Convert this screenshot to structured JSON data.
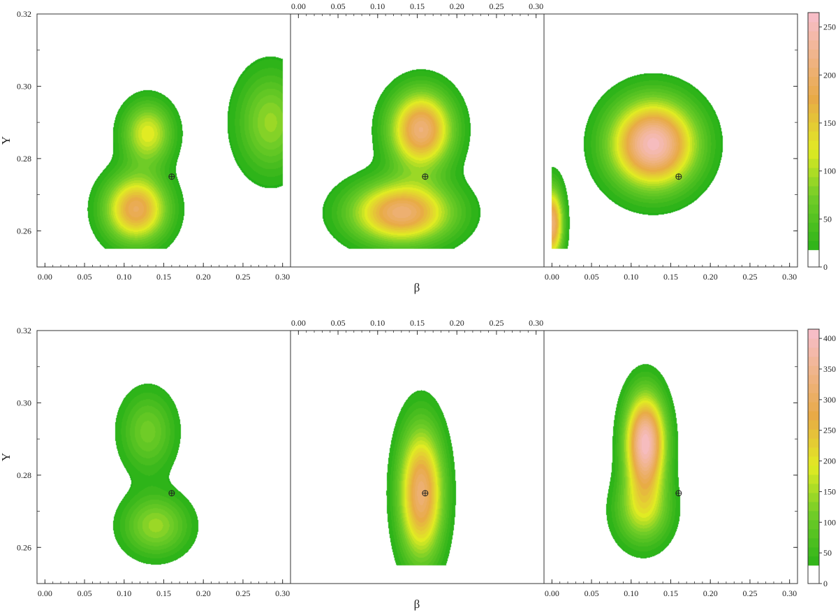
{
  "chart_data": [
    {
      "type": "heatmap",
      "title": "",
      "xlabel": "β",
      "ylabel": "Y",
      "panels": 3,
      "xlim": [
        -0.01,
        0.31
      ],
      "ylim": [
        0.25,
        0.32
      ],
      "xticks": [
        0.0,
        0.05,
        0.1,
        0.15,
        0.2,
        0.25,
        0.3
      ],
      "xtick_labels": [
        "0.00",
        "0.05",
        "0.10",
        "0.15",
        "0.20",
        "0.25",
        "0.30"
      ],
      "yticks": [
        0.26,
        0.28,
        0.3,
        0.32
      ],
      "ytick_labels": [
        "0.26",
        "0.28",
        "0.30",
        "0.32"
      ],
      "colorbar": {
        "ticks": [
          0,
          50,
          100,
          150,
          200,
          250
        ],
        "tick_labels": [
          "0",
          "50",
          "100",
          "150",
          "200",
          "250"
        ],
        "range": [
          0,
          265
        ],
        "zero_band_max": 18
      },
      "marker": {
        "symbol": "⊕",
        "x": 0.16,
        "y": 0.275
      },
      "peaks": [
        [
          {
            "x": 0.115,
            "y": 0.266,
            "value": 195,
            "sx": 0.028,
            "sy": 0.0065
          },
          {
            "x": 0.13,
            "y": 0.287,
            "value": 130,
            "sx": 0.022,
            "sy": 0.006
          },
          {
            "x": 0.285,
            "y": 0.29,
            "value": 95,
            "sx": 0.03,
            "sy": 0.01
          }
        ],
        [
          {
            "x": 0.13,
            "y": 0.265,
            "value": 210,
            "sx": 0.045,
            "sy": 0.006
          },
          {
            "x": 0.155,
            "y": 0.288,
            "value": 215,
            "sx": 0.028,
            "sy": 0.0075
          }
        ],
        [
          {
            "x": 0.128,
            "y": 0.284,
            "value": 260,
            "sx": 0.038,
            "sy": 0.0085
          },
          {
            "x": 0.0,
            "y": 0.262,
            "value": 215,
            "sx": 0.01,
            "sy": 0.007
          }
        ]
      ]
    },
    {
      "type": "heatmap",
      "title": "",
      "xlabel": "β",
      "ylabel": "Y",
      "panels": 3,
      "xlim": [
        -0.01,
        0.31
      ],
      "ylim": [
        0.25,
        0.32
      ],
      "xticks": [
        0.0,
        0.05,
        0.1,
        0.15,
        0.2,
        0.25,
        0.3
      ],
      "xtick_labels": [
        "0.00",
        "0.05",
        "0.10",
        "0.15",
        "0.20",
        "0.25",
        "0.30"
      ],
      "yticks": [
        0.26,
        0.28,
        0.3,
        0.32
      ],
      "ytick_labels": [
        "0.26",
        "0.28",
        "0.30",
        "0.32"
      ],
      "colorbar": {
        "ticks": [
          0,
          50,
          100,
          150,
          200,
          250,
          300,
          350,
          400
        ],
        "tick_labels": [
          "0",
          "50",
          "100",
          "150",
          "200",
          "250",
          "300",
          "350",
          "400"
        ],
        "range": [
          0,
          415
        ],
        "zero_band_max": 30
      },
      "marker": {
        "symbol": "⊕",
        "x": 0.16,
        "y": 0.275
      },
      "peaks": [
        [
          {
            "x": 0.14,
            "y": 0.266,
            "value": 150,
            "sx": 0.03,
            "sy": 0.006
          },
          {
            "x": 0.13,
            "y": 0.292,
            "value": 120,
            "sx": 0.025,
            "sy": 0.008
          }
        ],
        [
          {
            "x": 0.155,
            "y": 0.275,
            "value": 330,
            "sx": 0.02,
            "sy": 0.013
          }
        ],
        [
          {
            "x": 0.118,
            "y": 0.289,
            "value": 410,
            "sx": 0.018,
            "sy": 0.0095
          },
          {
            "x": 0.115,
            "y": 0.27,
            "value": 160,
            "sx": 0.025,
            "sy": 0.007
          }
        ]
      ]
    }
  ]
}
